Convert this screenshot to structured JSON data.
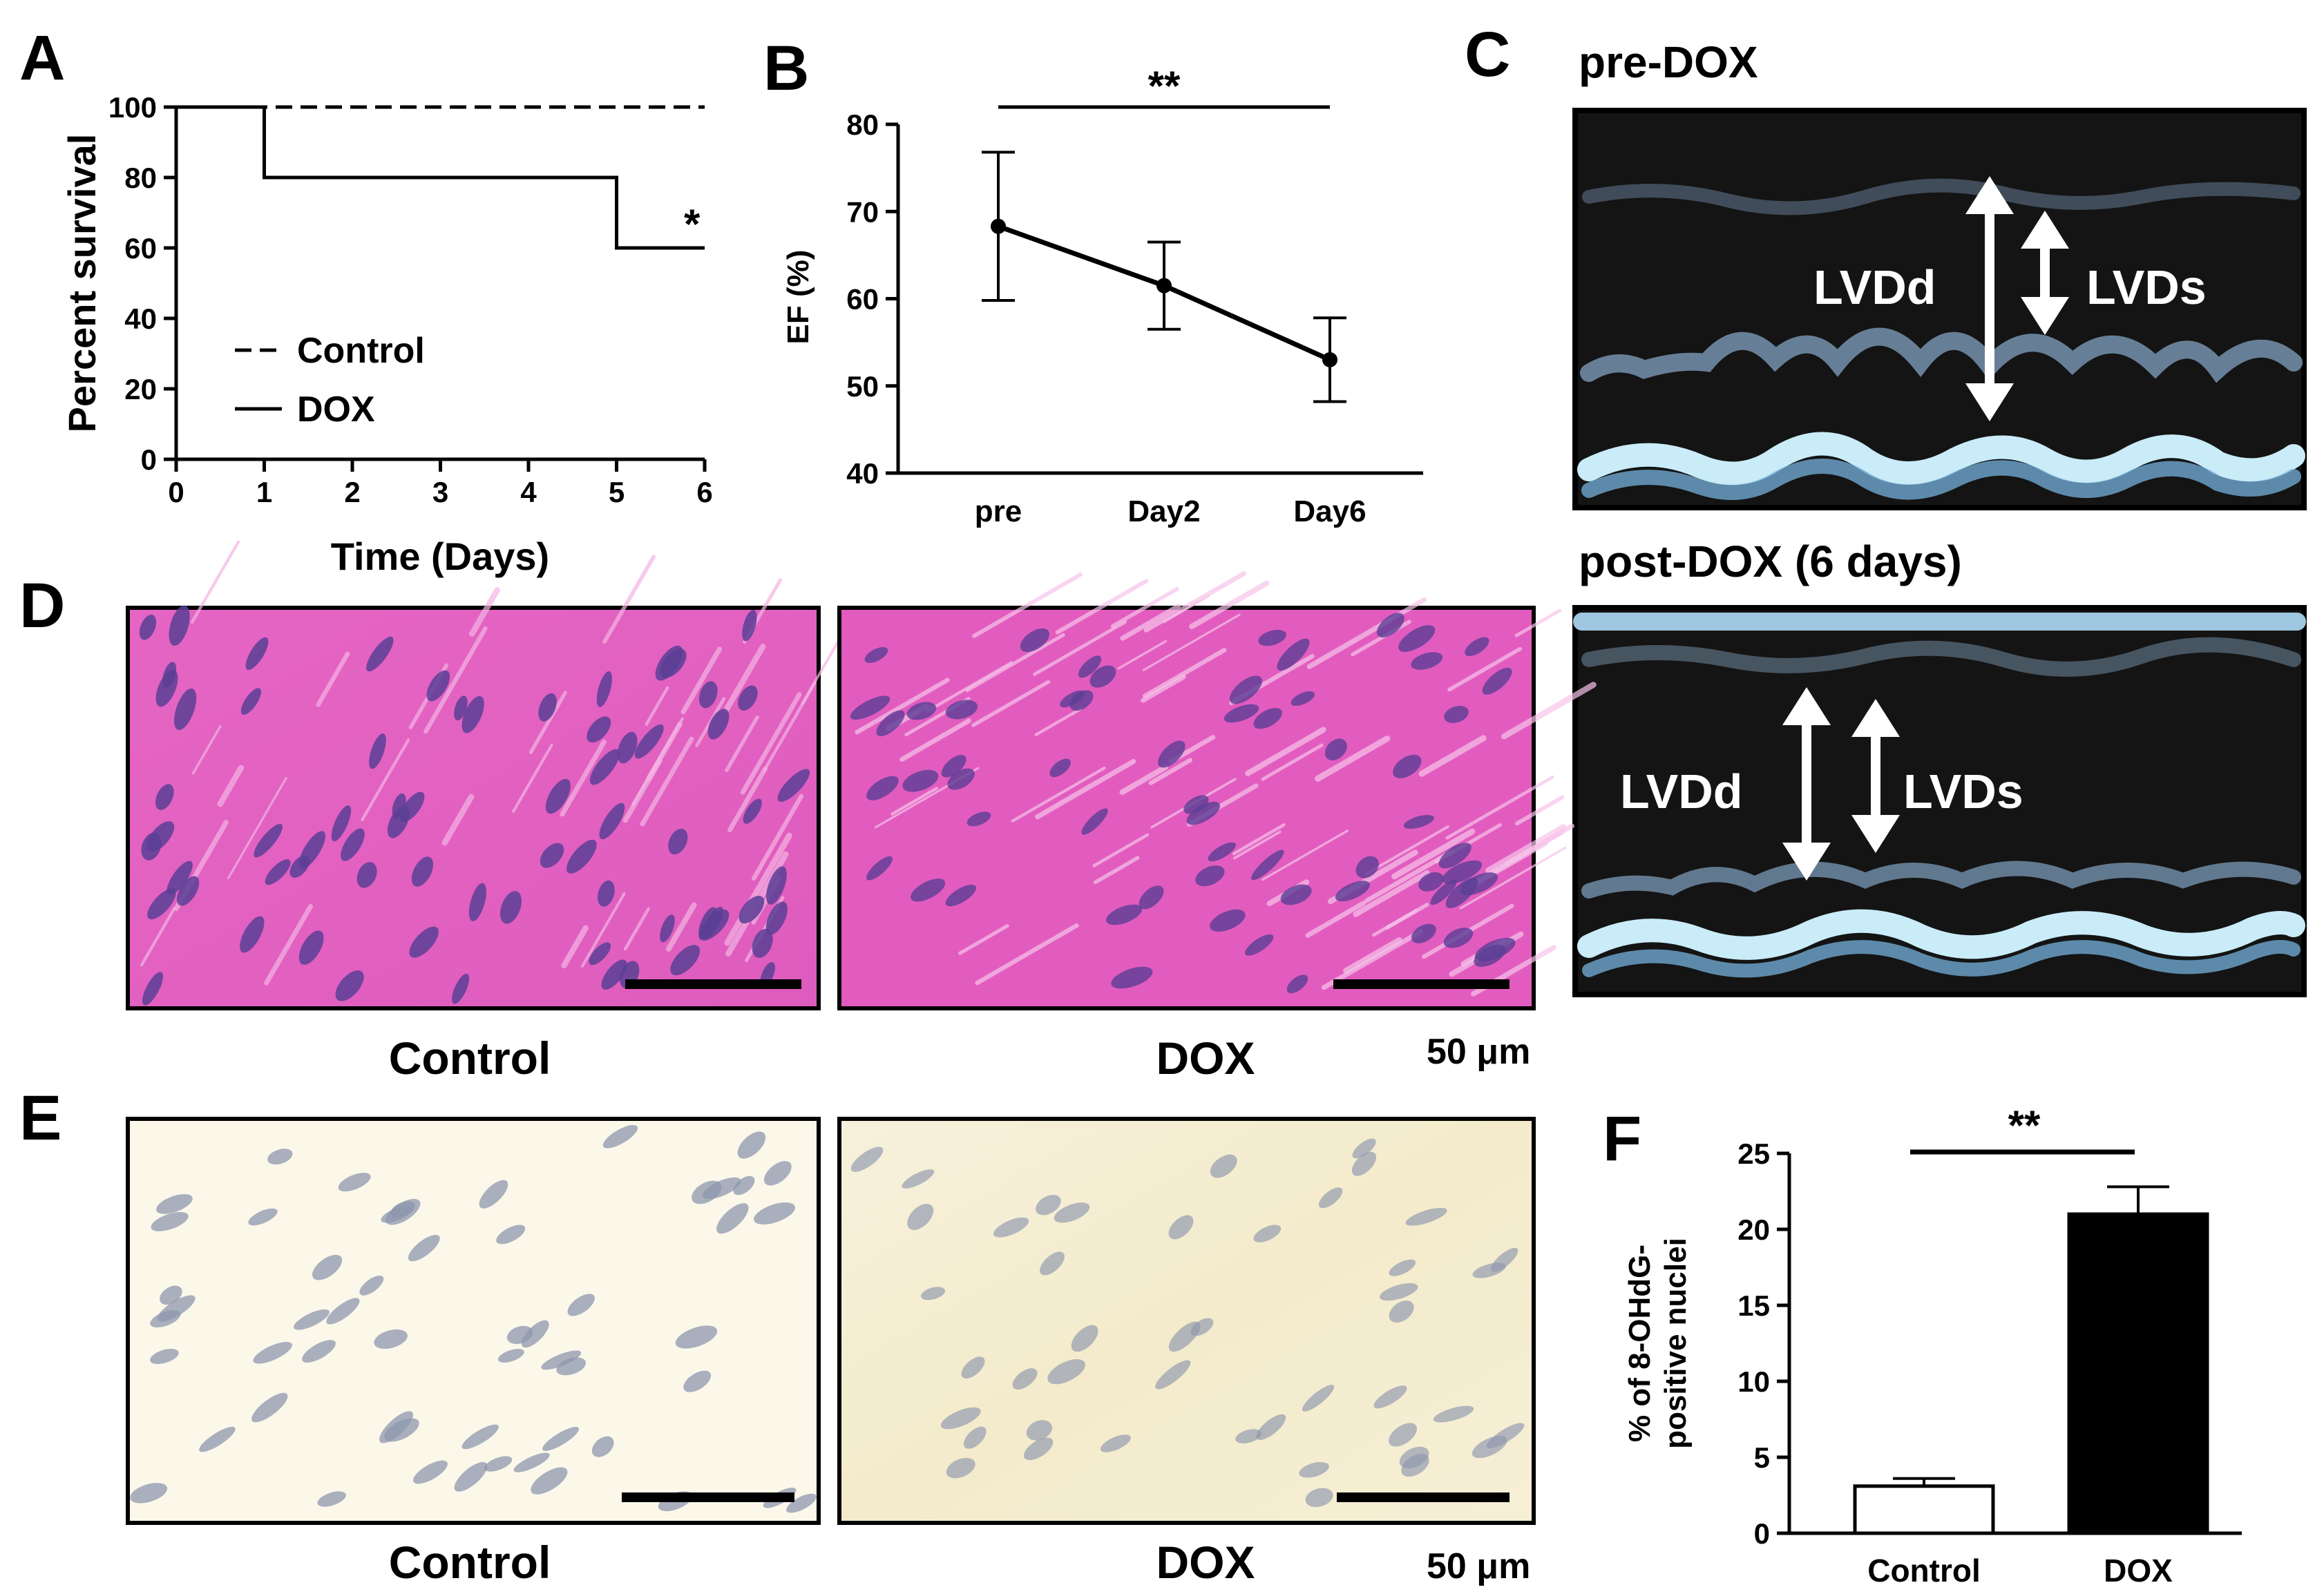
{
  "panels": {
    "a": "A",
    "b": "B",
    "c": "C",
    "d": "D",
    "e": "E",
    "f": "F"
  },
  "chart_data": [
    {
      "panel": "A",
      "type": "line",
      "ylabel": "Percent survival",
      "xlabel": "Time (Days)",
      "xlim": [
        0,
        6
      ],
      "ylim": [
        0,
        100
      ],
      "x_ticks": [
        "0",
        "1",
        "2",
        "3",
        "4",
        "5",
        "6"
      ],
      "y_ticks": [
        "0",
        "20",
        "40",
        "60",
        "80",
        "100"
      ],
      "series": [
        {
          "name": "Control",
          "style": "dashed",
          "x": [
            0,
            6
          ],
          "y": [
            100,
            100
          ]
        },
        {
          "name": "DOX",
          "style": "solid",
          "step": true,
          "x": [
            0,
            1,
            5,
            6
          ],
          "y": [
            100,
            80,
            60,
            60
          ]
        }
      ],
      "annotation": "*"
    },
    {
      "panel": "B",
      "type": "line",
      "ylabel": "EF (%)",
      "ylim": [
        40,
        80
      ],
      "categories": [
        "pre",
        "Day2",
        "Day6"
      ],
      "y_ticks": [
        "40",
        "50",
        "60",
        "70",
        "80"
      ],
      "values": [
        68.3,
        61.5,
        53.0
      ],
      "error": [
        8.5,
        5.0,
        4.8
      ],
      "significance": "**"
    },
    {
      "panel": "F",
      "type": "bar",
      "ylabel_lines": [
        "% of 8-OHdG-",
        "positive nuclei"
      ],
      "ylim": [
        0,
        25
      ],
      "categories": [
        "Control",
        "DOX"
      ],
      "y_ticks": [
        "0",
        "5",
        "10",
        "15",
        "20",
        "25"
      ],
      "values": [
        3.1,
        21.0
      ],
      "error": [
        0.5,
        1.8
      ],
      "bar_colors": [
        "#ffffff",
        "#000000"
      ],
      "significance": "**"
    }
  ],
  "echo": {
    "pre_title": "pre-DOX",
    "post_title": "post-DOX (6 days)",
    "lvdd": "LVDd",
    "lvds": "LVDs"
  },
  "histology_d": {
    "left_label": "Control",
    "right_label": "DOX",
    "scale": "50 μm",
    "colors": {
      "stroma": "#e561c2",
      "nuclei": "#5b3f95"
    }
  },
  "histology_e": {
    "left_label": "Control",
    "right_label": "DOX",
    "scale": "50 μm",
    "colors": {
      "stroma": "#fbf6e3",
      "nuclei": "#8e97ad"
    }
  }
}
